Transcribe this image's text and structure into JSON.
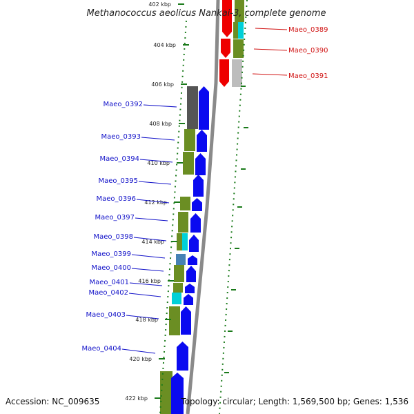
{
  "title": "Methanococcus aeolicus Nankai-3, complete genome",
  "footer": {
    "accession": "Accession: NC_009635",
    "topology": "Topology: circular; Length: 1,569,500 bp; Genes: 1,536"
  },
  "scale_labels": [
    "402 kbp",
    "404 kbp",
    "406 kbp",
    "408 kbp",
    "410 kbp",
    "412 kbp",
    "414 kbp",
    "416 kbp",
    "418 kbp",
    "420 kbp",
    "422 kbp"
  ],
  "genes_forward": [
    {
      "name": "Maeo_0389"
    },
    {
      "name": "Maeo_0390"
    },
    {
      "name": "Maeo_0391"
    }
  ],
  "genes_reverse": [
    {
      "name": "Maeo_0392"
    },
    {
      "name": "Maeo_0393"
    },
    {
      "name": "Maeo_0394"
    },
    {
      "name": "Maeo_0395"
    },
    {
      "name": "Maeo_0396"
    },
    {
      "name": "Maeo_0397"
    },
    {
      "name": "Maeo_0398"
    },
    {
      "name": "Maeo_0399"
    },
    {
      "name": "Maeo_0400"
    },
    {
      "name": "Maeo_0401"
    },
    {
      "name": "Maeo_0402"
    },
    {
      "name": "Maeo_0403"
    },
    {
      "name": "Maeo_0404"
    }
  ],
  "colors": {
    "reverse_arrow": "#0a0af0",
    "forward_arrow": "#ee0000",
    "cog_olive": "#6b8e23",
    "cog_cyan": "#00d0d8",
    "cog_gray_dark": "#555555",
    "cog_gray_light": "#bdbdbd",
    "cog_steel": "#4682b4",
    "scale_ticks": "#1a7a1a",
    "backbone": "#8a8a8a",
    "label_blue": "#1010c8",
    "label_red": "#d01010"
  }
}
